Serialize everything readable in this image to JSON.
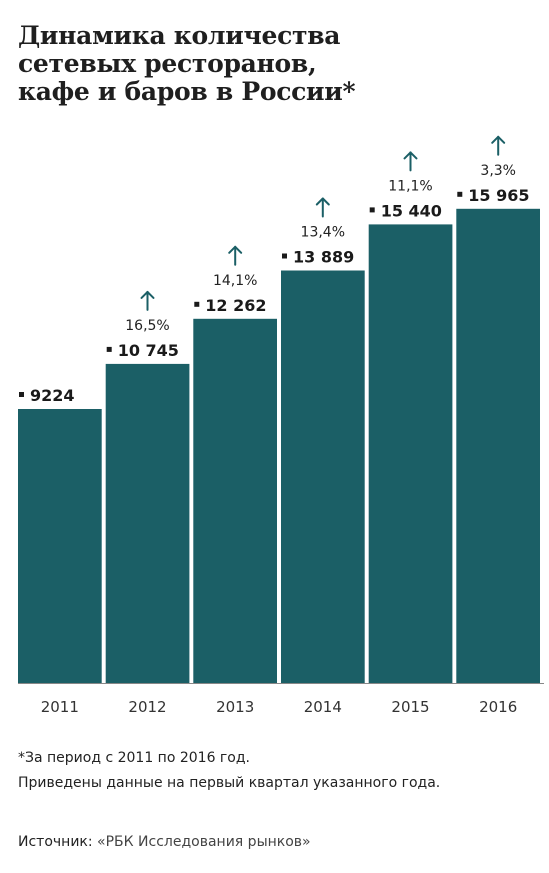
{
  "title_lines": [
    "Динамика количества",
    "сетевых ресторанов,",
    "кафе и баров в России*"
  ],
  "chart_data": {
    "type": "bar",
    "title": "Динамика количества сетевых ресторанов, кафе и баров в России*",
    "categories": [
      "2011",
      "2012",
      "2013",
      "2014",
      "2015",
      "2016"
    ],
    "values": [
      9224,
      10745,
      12262,
      13889,
      15440,
      15965
    ],
    "value_labels": [
      "9224",
      "10 745",
      "12 262",
      "13 889",
      "15 440",
      "15 965"
    ],
    "growth_labels": [
      "",
      "16,5%",
      "14,1%",
      "13,4%",
      "11,1%",
      "3,3%"
    ],
    "xlabel": "",
    "ylabel": "",
    "ylim": [
      0,
      18100
    ],
    "grid": false,
    "legend": "none"
  },
  "colors": {
    "bar": "#1b5f66",
    "arrow": "#1b5f66",
    "marker": "#1a1a1a",
    "baseline": "#888888"
  },
  "icons": {
    "growth": "arrow-up-icon",
    "value_marker": "square-bullet-icon"
  },
  "notes": {
    "footnote": "*За период с 2011 по 2016 год.",
    "explanation": "Приведены данные на первый квартал указанного года."
  },
  "source": {
    "label": "Источник:",
    "value": "«РБК Исследования рынков»"
  }
}
